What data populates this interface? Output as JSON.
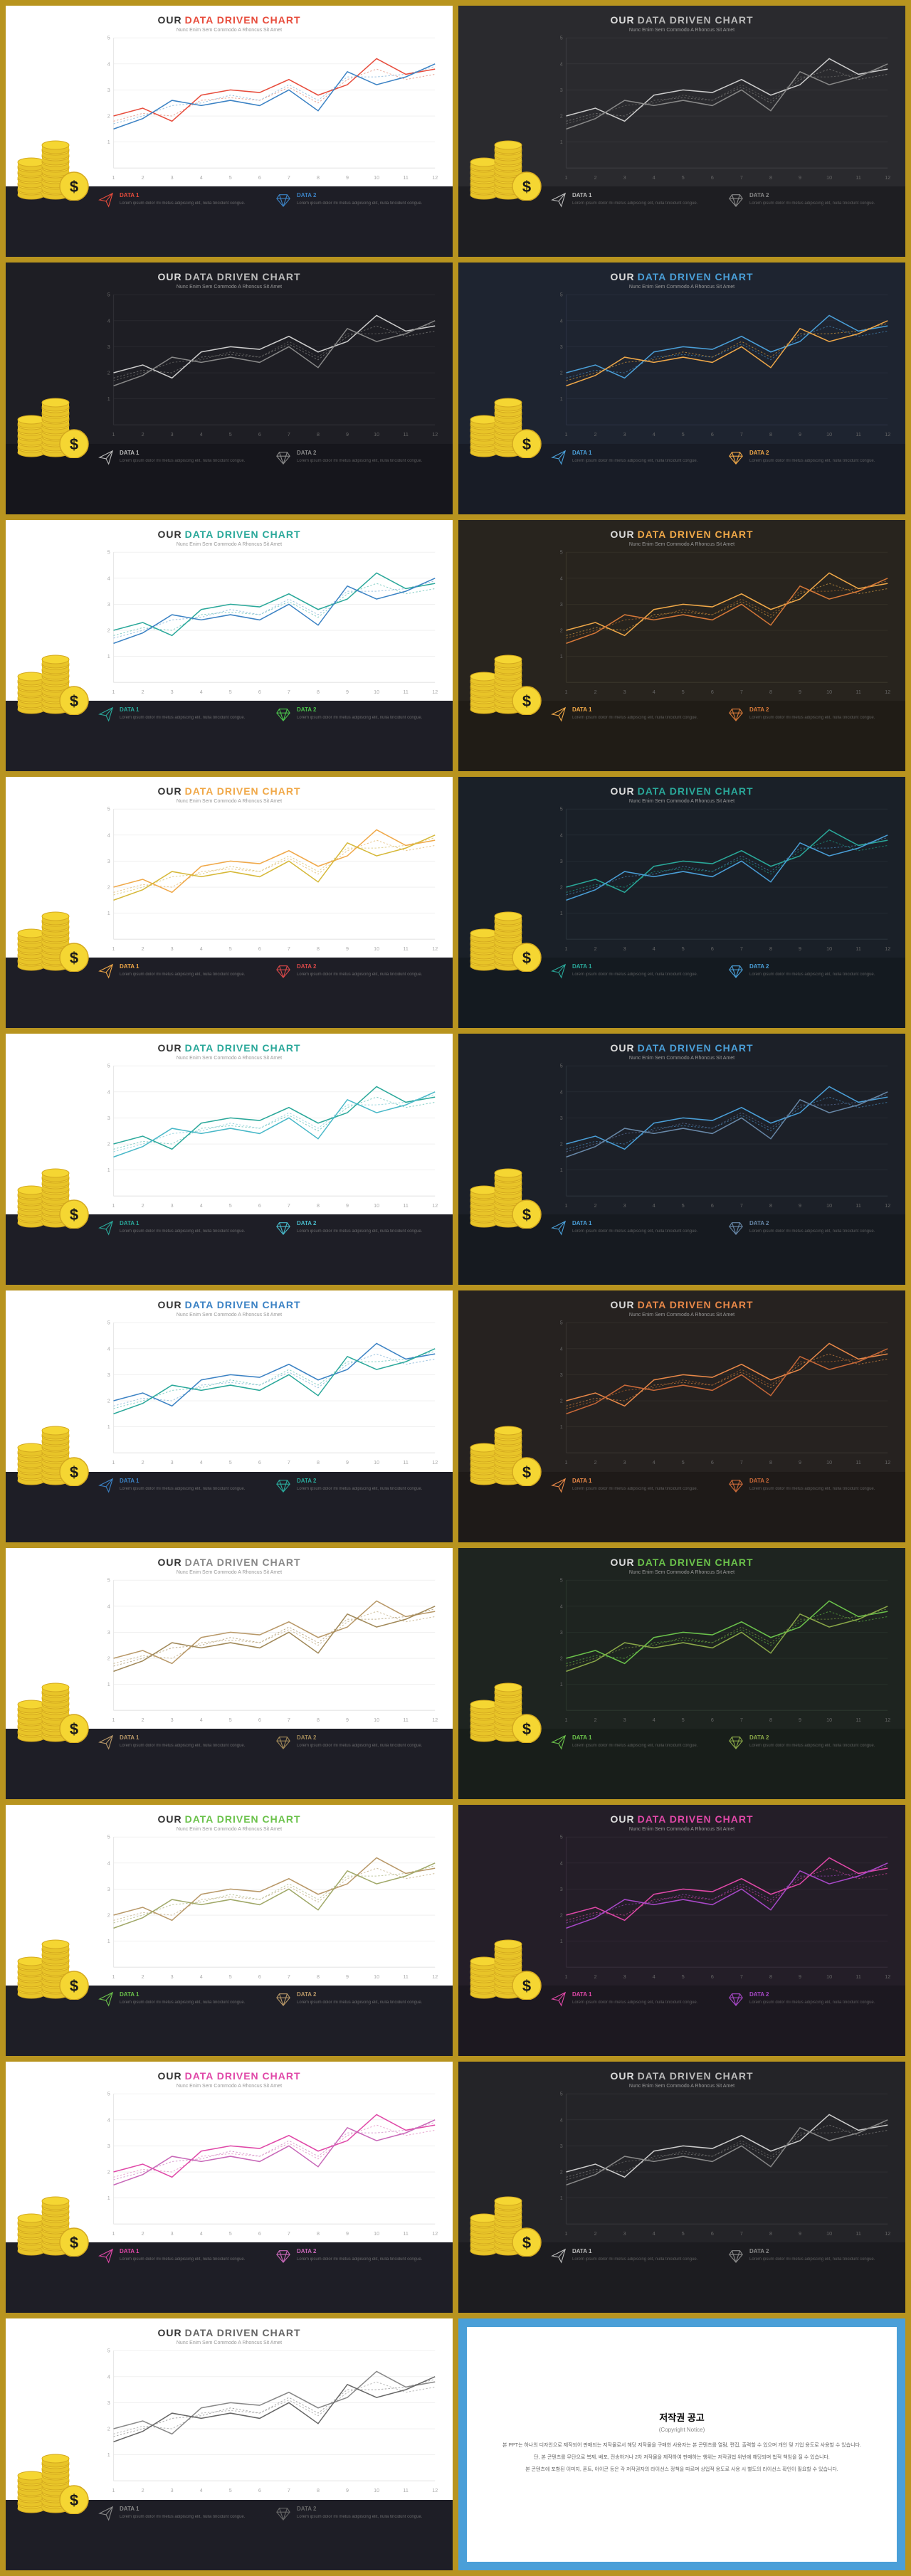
{
  "title_our": "OUR",
  "title_rest": "DATA DRIVEN CHART",
  "subtitle": "Nunc Enim Sem Commodo A Rhoncus Sit Amet",
  "legend": {
    "data1_label": "DATA 1",
    "data2_label": "DATA 2",
    "desc": "Lorem ipsum dolor mi metus adipiscing elit, nulla tincidunt congue."
  },
  "chart": {
    "x_ticks": [
      1,
      2,
      3,
      4,
      5,
      6,
      7,
      8,
      9,
      10,
      11,
      12
    ],
    "y_ticks": [
      1,
      2,
      3,
      4,
      5
    ],
    "ylim": [
      0,
      5
    ],
    "series1": [
      2.0,
      2.3,
      1.8,
      2.8,
      3.0,
      2.9,
      3.4,
      2.8,
      3.2,
      4.2,
      3.6,
      3.8
    ],
    "series2": [
      1.5,
      1.9,
      2.6,
      2.4,
      2.6,
      2.4,
      3.0,
      2.2,
      3.7,
      3.2,
      3.5,
      4.0
    ],
    "series_dash1": [
      1.8,
      2.1,
      2.0,
      2.6,
      2.7,
      2.6,
      3.1,
      2.5,
      3.4,
      3.8,
      3.4,
      3.6
    ],
    "series_dash2": [
      1.7,
      2.0,
      2.4,
      2.5,
      2.8,
      2.6,
      3.2,
      2.6,
      3.5,
      3.5,
      3.6,
      3.9
    ]
  },
  "coin_colors": {
    "face": "#f5d632",
    "side": "#e8c428",
    "edge": "#d4a91f",
    "dollar": "#1a1a1a"
  },
  "slides": [
    {
      "top_bg": "#ffffff",
      "bot_bg": "#1e1e26",
      "title_our": "#333",
      "title_accent": "#e74c3c",
      "grid": "#e8e8e8",
      "axis_txt": "#aaa",
      "s1": "#e74c3c",
      "s2": "#3b82c4",
      "d1": "#e8a89a",
      "d2": "#9ec4e0",
      "leg_txt": "#ddd",
      "leg1": "#e74c3c",
      "leg2": "#3b82c4",
      "desc": "#888"
    },
    {
      "top_bg": "#2a2a2e",
      "bot_bg": "#1e1e22",
      "title_our": "#ddd",
      "title_accent": "#bbb",
      "grid": "#3a3a3e",
      "axis_txt": "#666",
      "s1": "#ccc",
      "s2": "#888",
      "d1": "#666",
      "d2": "#555",
      "leg_txt": "#ddd",
      "leg1": "#bbb",
      "leg2": "#888",
      "desc": "#777"
    },
    {
      "top_bg": "#1e1e24",
      "bot_bg": "#16161c",
      "title_our": "#ddd",
      "title_accent": "#bbb",
      "grid": "#2e2e34",
      "axis_txt": "#666",
      "s1": "#ccc",
      "s2": "#888",
      "d1": "#666",
      "d2": "#555",
      "leg_txt": "#ddd",
      "leg1": "#bbb",
      "leg2": "#888",
      "desc": "#777"
    },
    {
      "top_bg": "#1e2430",
      "bot_bg": "#181c26",
      "title_our": "#ddd",
      "title_accent": "#4a9fd8",
      "grid": "#2a3040",
      "axis_txt": "#666",
      "s1": "#4a9fd8",
      "s2": "#f0a848",
      "d1": "#3a6a90",
      "d2": "#a07838",
      "leg_txt": "#ddd",
      "leg1": "#4a9fd8",
      "leg2": "#f0a848",
      "desc": "#777"
    },
    {
      "top_bg": "#ffffff",
      "bot_bg": "#1e1e26",
      "title_our": "#333",
      "title_accent": "#2aa89a",
      "grid": "#e8e8e8",
      "axis_txt": "#aaa",
      "s1": "#2aa89a",
      "s2": "#3b82c4",
      "d1": "#8ad0c8",
      "d2": "#9ec4e0",
      "leg_txt": "#ddd",
      "leg1": "#2aa89a",
      "leg2": "#4bc24b",
      "desc": "#888"
    },
    {
      "top_bg": "#28241e",
      "bot_bg": "#201c16",
      "title_our": "#ddd",
      "title_accent": "#f0a848",
      "grid": "#38342a",
      "axis_txt": "#666",
      "s1": "#f0a848",
      "s2": "#d67838",
      "d1": "#a07838",
      "d2": "#8a5828",
      "leg_txt": "#ddd",
      "leg1": "#f0a848",
      "leg2": "#d67838",
      "desc": "#777"
    },
    {
      "top_bg": "#ffffff",
      "bot_bg": "#1e1e26",
      "title_our": "#333",
      "title_accent": "#f0a848",
      "grid": "#e8e8e8",
      "axis_txt": "#aaa",
      "s1": "#f0a848",
      "s2": "#d6b838",
      "d1": "#e8c890",
      "d2": "#e0d090",
      "leg_txt": "#ddd",
      "leg1": "#f0a848",
      "leg2": "#d84848",
      "desc": "#888"
    },
    {
      "top_bg": "#1a2028",
      "bot_bg": "#141a20",
      "title_our": "#ddd",
      "title_accent": "#2aa89a",
      "grid": "#283038",
      "axis_txt": "#666",
      "s1": "#2aa89a",
      "s2": "#4a9fd8",
      "d1": "#1a786a",
      "d2": "#3a6a90",
      "leg_txt": "#ddd",
      "leg1": "#2aa89a",
      "leg2": "#4a9fd8",
      "desc": "#777"
    },
    {
      "top_bg": "#ffffff",
      "bot_bg": "#1e1e26",
      "title_our": "#333",
      "title_accent": "#2aa89a",
      "grid": "#e8e8e8",
      "axis_txt": "#aaa",
      "s1": "#2aa89a",
      "s2": "#48b8c8",
      "d1": "#8ad0c8",
      "d2": "#a0d8e0",
      "leg_txt": "#ddd",
      "leg1": "#2aa89a",
      "leg2": "#48b8c8",
      "desc": "#888"
    },
    {
      "top_bg": "#1c2028",
      "bot_bg": "#161a20",
      "title_our": "#ddd",
      "title_accent": "#4a9fd8",
      "grid": "#2a3038",
      "axis_txt": "#666",
      "s1": "#4a9fd8",
      "s2": "#6888a8",
      "d1": "#3a6a90",
      "d2": "#485878",
      "leg_txt": "#ddd",
      "leg1": "#4a9fd8",
      "leg2": "#6888a8",
      "desc": "#777"
    },
    {
      "top_bg": "#ffffff",
      "bot_bg": "#1e1e26",
      "title_our": "#333",
      "title_accent": "#3b82c4",
      "grid": "#e8e8e8",
      "axis_txt": "#aaa",
      "s1": "#3b82c4",
      "s2": "#2aa89a",
      "d1": "#9ec4e0",
      "d2": "#8ad0c8",
      "leg_txt": "#ddd",
      "leg1": "#3b82c4",
      "leg2": "#2aa89a",
      "desc": "#888"
    },
    {
      "top_bg": "#262220",
      "bot_bg": "#1e1a18",
      "title_our": "#ddd",
      "title_accent": "#e88848",
      "grid": "#36322e",
      "axis_txt": "#666",
      "s1": "#e88848",
      "s2": "#c86838",
      "d1": "#a06838",
      "d2": "#885028",
      "leg_txt": "#ddd",
      "leg1": "#e88848",
      "leg2": "#c86838",
      "desc": "#777"
    },
    {
      "top_bg": "#ffffff",
      "bot_bg": "#1e1e26",
      "title_our": "#333",
      "title_accent": "#888",
      "grid": "#e8e8e8",
      "axis_txt": "#aaa",
      "s1": "#b89868",
      "s2": "#a08858",
      "d1": "#d0c0a0",
      "d2": "#c0b090",
      "leg_txt": "#ddd",
      "leg1": "#b89868",
      "leg2": "#a08858",
      "desc": "#888"
    },
    {
      "top_bg": "#1e2420",
      "bot_bg": "#181e1a",
      "title_our": "#ddd",
      "title_accent": "#6bc24b",
      "grid": "#2a342c",
      "axis_txt": "#666",
      "s1": "#6bc24b",
      "s2": "#8aa848",
      "d1": "#4a8a38",
      "d2": "#607838",
      "leg_txt": "#ddd",
      "leg1": "#6bc24b",
      "leg2": "#8aa848",
      "desc": "#777"
    },
    {
      "top_bg": "#ffffff",
      "bot_bg": "#1e1e26",
      "title_our": "#333",
      "title_accent": "#6bc24b",
      "grid": "#e8e8e8",
      "axis_txt": "#aaa",
      "s1": "#b89868",
      "s2": "#a0a868",
      "d1": "#d0c0a0",
      "d2": "#c0c8a0",
      "leg_txt": "#ddd",
      "leg1": "#6bc24b",
      "leg2": "#b89868",
      "desc": "#888"
    },
    {
      "top_bg": "#241e28",
      "bot_bg": "#1c1820",
      "title_our": "#ddd",
      "title_accent": "#e048a8",
      "grid": "#342c38",
      "axis_txt": "#666",
      "s1": "#e048a8",
      "s2": "#a848c8",
      "d1": "#a03878",
      "d2": "#783890",
      "leg_txt": "#ddd",
      "leg1": "#e048a8",
      "leg2": "#a848c8",
      "desc": "#777"
    },
    {
      "top_bg": "#ffffff",
      "bot_bg": "#1e1e26",
      "title_our": "#333",
      "title_accent": "#e048a8",
      "grid": "#e8e8e8",
      "axis_txt": "#aaa",
      "s1": "#e048a8",
      "s2": "#c868b8",
      "d1": "#e8a8d0",
      "d2": "#d8a0d0",
      "leg_txt": "#ddd",
      "leg1": "#e048a8",
      "leg2": "#c868b8",
      "desc": "#888"
    },
    {
      "top_bg": "#242428",
      "bot_bg": "#1c1c20",
      "title_our": "#ddd",
      "title_accent": "#bbb",
      "grid": "#343438",
      "axis_txt": "#666",
      "s1": "#ccc",
      "s2": "#888",
      "d1": "#666",
      "d2": "#555",
      "leg_txt": "#ddd",
      "leg1": "#bbb",
      "leg2": "#888",
      "desc": "#777"
    },
    {
      "top_bg": "#ffffff",
      "bot_bg": "#1e1e26",
      "title_our": "#333",
      "title_accent": "#666",
      "grid": "#e8e8e8",
      "axis_txt": "#aaa",
      "s1": "#888",
      "s2": "#666",
      "d1": "#bbb",
      "d2": "#aaa",
      "leg_txt": "#ddd",
      "leg1": "#888",
      "leg2": "#666",
      "desc": "#888"
    }
  ],
  "info_card": {
    "title": "저작권 공고",
    "sub": "(Copyright Notice)",
    "p1": "본 PPT는 하나의 디자인으로 제작되어 판매되는 저작물로서 해당 저작물을 구매한 사용자는 본 콘텐츠를 열람, 편집, 출력할 수 있으며 개인 및 기업 용도로 사용할 수 있습니다.",
    "p2": "단, 본 콘텐츠를 무단으로 복제, 배포, 전송하거나 2차 저작물을 제작하여 판매하는 행위는 저작권법 위반에 해당되며 법적 책임을 질 수 있습니다.",
    "p3": "본 콘텐츠에 포함된 이미지, 폰트, 아이콘 등은 각 저작권자의 라이선스 정책을 따르며 상업적 용도로 사용 시 별도의 라이선스 확인이 필요할 수 있습니다."
  }
}
